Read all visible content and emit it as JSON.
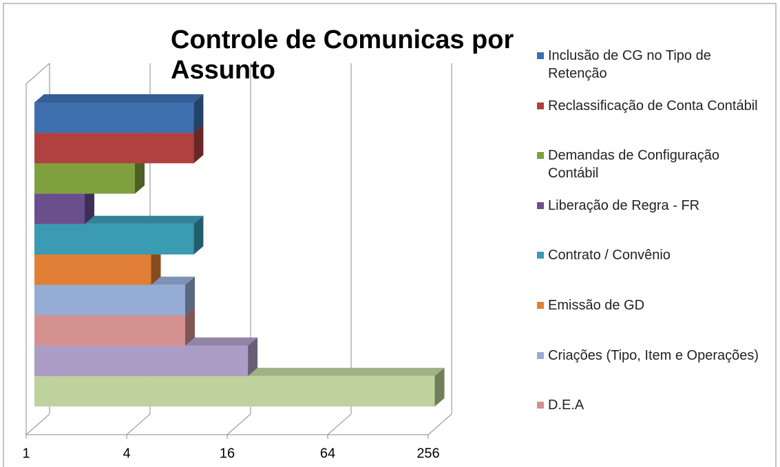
{
  "chart_data": {
    "type": "bar3d_horizontal",
    "title": "Controle de Comunicas por Assunto",
    "categories": [
      "Inclusão de CG no Tipo de Retenção",
      "Reclassificação de Conta Contábil",
      "Demandas de Configuração Contábil",
      "Liberação de Regra - FR",
      "Contrato / Convênio",
      "Emissão de GD",
      "Criações (Tipo, Item e Operações)",
      "D.E.A",
      null,
      null
    ],
    "values": [
      9,
      9,
      4,
      2,
      9,
      5,
      8,
      8,
      19,
      250
    ],
    "colors": [
      "#3f6faf",
      "#b0413e",
      "#80a03f",
      "#6a4f8d",
      "#3a9bb2",
      "#e07f35",
      "#95acd4",
      "#d49190",
      "#ab9dc5",
      "#bdd29c"
    ],
    "xlim": [
      1,
      256
    ],
    "xticks": [
      1,
      4,
      16,
      64,
      256
    ],
    "log_base": 2,
    "grid": true
  }
}
